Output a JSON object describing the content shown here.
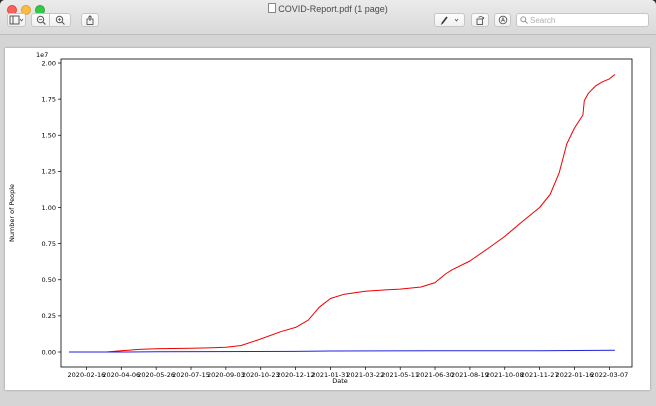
{
  "window": {
    "title": "COVID-Report.pdf (1 page)"
  },
  "toolbar": {
    "search_placeholder": "Search"
  },
  "icons": {
    "sidebar": "sidebar-toggle-icon",
    "zoom_out": "zoom-out-icon",
    "zoom_in": "zoom-in-icon",
    "share": "share-icon",
    "markup": "pen-markup-icon",
    "rotate": "rotate-icon",
    "annotate": "annotate-circle-icon",
    "search": "magnifier-icon"
  },
  "chart_data": {
    "type": "line",
    "title": "",
    "xlabel": "Date",
    "ylabel": "Number of People",
    "y_scale_label": "1e7",
    "x_ticks": [
      "2020-02-16",
      "2020-04-06",
      "2020-05-26",
      "2020-07-15",
      "2020-09-03",
      "2020-10-23",
      "2020-12-12",
      "2021-01-31",
      "2021-03-22",
      "2021-05-11",
      "2021-06-30",
      "2021-08-19",
      "2021-10-08",
      "2021-11-27",
      "2022-01-16",
      "2022-03-07"
    ],
    "y_ticks": [
      "0.00",
      "0.25",
      "0.50",
      "0.75",
      "1.00",
      "1.25",
      "1.50",
      "1.75",
      "2.00"
    ],
    "ylim": [
      0,
      2.0
    ],
    "xlim": [
      "2020-01-22",
      "2022-03-28"
    ],
    "series": [
      {
        "color": "#ee0000",
        "points": [
          [
            "2020-01-22",
            0.0
          ],
          [
            "2020-03-15",
            0.0
          ],
          [
            "2020-04-06",
            0.008
          ],
          [
            "2020-05-01",
            0.018
          ],
          [
            "2020-05-26",
            0.022
          ],
          [
            "2020-07-15",
            0.026
          ],
          [
            "2020-08-15",
            0.03
          ],
          [
            "2020-09-03",
            0.033
          ],
          [
            "2020-09-25",
            0.045
          ],
          [
            "2020-10-23",
            0.09
          ],
          [
            "2020-11-20",
            0.14
          ],
          [
            "2020-12-12",
            0.17
          ],
          [
            "2020-12-30",
            0.22
          ],
          [
            "2021-01-15",
            0.31
          ],
          [
            "2021-01-31",
            0.37
          ],
          [
            "2021-02-20",
            0.4
          ],
          [
            "2021-03-22",
            0.42
          ],
          [
            "2021-04-20",
            0.43
          ],
          [
            "2021-05-11",
            0.435
          ],
          [
            "2021-06-10",
            0.45
          ],
          [
            "2021-06-30",
            0.48
          ],
          [
            "2021-07-15",
            0.54
          ],
          [
            "2021-07-25",
            0.57
          ],
          [
            "2021-08-19",
            0.63
          ],
          [
            "2021-09-15",
            0.72
          ],
          [
            "2021-10-08",
            0.8
          ],
          [
            "2021-10-30",
            0.89
          ],
          [
            "2021-11-27",
            1.0
          ],
          [
            "2021-12-12",
            1.09
          ],
          [
            "2021-12-25",
            1.24
          ],
          [
            "2022-01-05",
            1.44
          ],
          [
            "2022-01-16",
            1.55
          ],
          [
            "2022-01-28",
            1.64
          ],
          [
            "2022-01-30",
            1.74
          ],
          [
            "2022-02-05",
            1.79
          ],
          [
            "2022-02-15",
            1.84
          ],
          [
            "2022-02-25",
            1.87
          ],
          [
            "2022-03-07",
            1.89
          ],
          [
            "2022-03-12",
            1.91
          ],
          [
            "2022-03-15",
            1.92
          ]
        ]
      },
      {
        "color": "#2222dd",
        "points": [
          [
            "2020-01-22",
            0.0
          ],
          [
            "2020-04-06",
            0.0
          ],
          [
            "2020-05-26",
            0.002
          ],
          [
            "2020-12-12",
            0.004
          ],
          [
            "2021-01-31",
            0.007
          ],
          [
            "2021-06-30",
            0.008
          ],
          [
            "2021-11-27",
            0.009
          ],
          [
            "2022-03-15",
            0.012
          ]
        ]
      }
    ]
  }
}
